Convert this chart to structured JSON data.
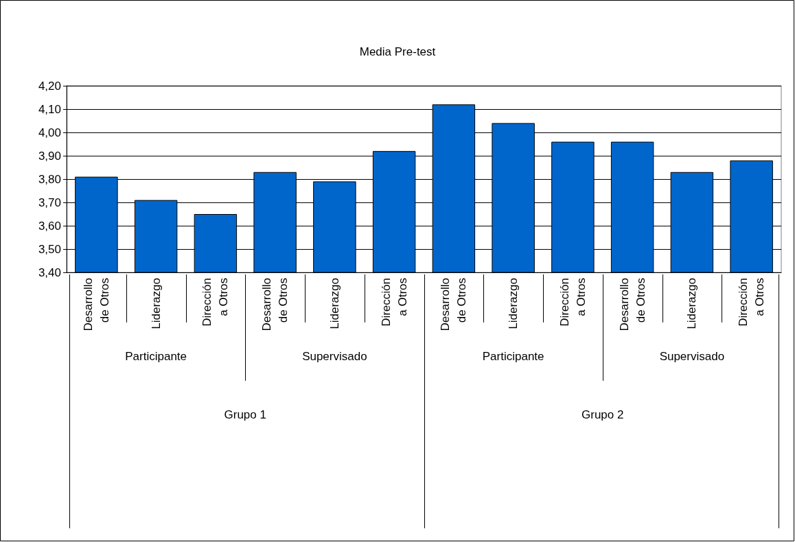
{
  "chart_data": {
    "type": "bar",
    "title": "Media Pre-test",
    "categories": [
      "Desarrollo de Otros",
      "Liderazgo",
      "Dirección a Otros",
      "Desarrollo de Otros",
      "Liderazgo",
      "Dirección a Otros",
      "Desarrollo de Otros",
      "Liderazgo",
      "Dirección a Otros",
      "Desarrollo de Otros",
      "Liderazgo",
      "Dirección a Otros"
    ],
    "values": [
      3.81,
      3.71,
      3.65,
      3.83,
      3.79,
      3.92,
      4.12,
      4.04,
      3.96,
      3.96,
      3.83,
      3.88
    ],
    "color": "#0066cc",
    "annotations": [
      "Participante",
      "Supervisado",
      "Participante",
      "Supervisado",
      "Grupo 1",
      "Grupo 2"
    ],
    "ylim": [
      3.4,
      4.2
    ],
    "yticks": [
      {
        "value": 3.4,
        "label": "3,40"
      },
      {
        "value": 3.5,
        "label": "3,50"
      },
      {
        "value": 3.6,
        "label": "3,60"
      },
      {
        "value": 3.7,
        "label": "3,70"
      },
      {
        "value": 3.8,
        "label": "3,80"
      },
      {
        "value": 3.9,
        "label": "3,90"
      },
      {
        "value": 4.0,
        "label": "4,00"
      },
      {
        "value": 4.1,
        "label": "4,10"
      },
      {
        "value": 4.2,
        "label": "4,20"
      }
    ],
    "grid": "y"
  }
}
